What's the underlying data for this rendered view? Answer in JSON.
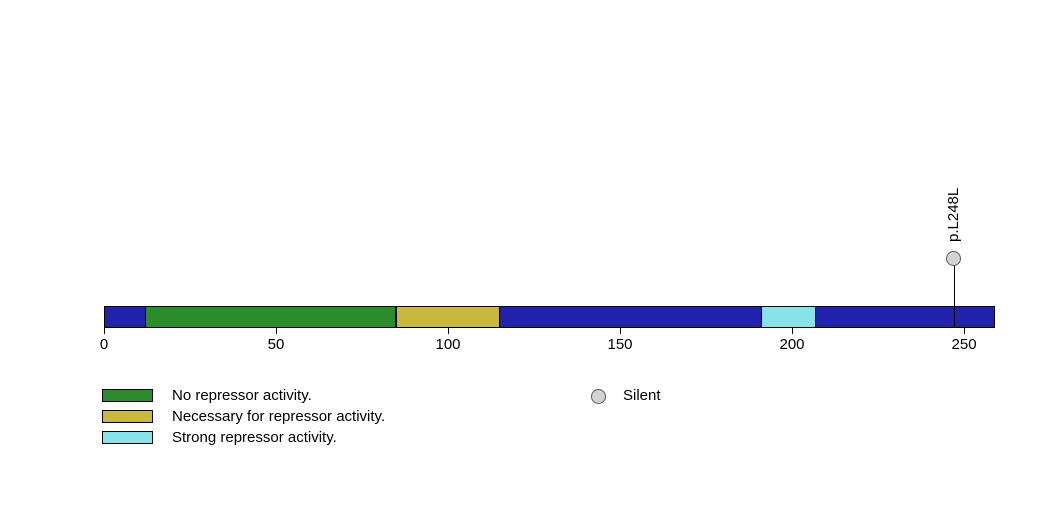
{
  "chart_data": {
    "type": "lollipop",
    "description": "Protein domain lollipop plot with one silent mutation",
    "axis": {
      "min": 0,
      "max": 259,
      "ticks": [
        0,
        50,
        100,
        150,
        200,
        250
      ],
      "grid": false
    },
    "backbone": {
      "start": 0,
      "end": 259,
      "color": "#2222AC"
    },
    "domains": [
      {
        "label": "No repressor activity.",
        "start": 12,
        "end": 85,
        "color": "#2B8C2B"
      },
      {
        "label": "Necessary for repressor activity.",
        "start": 85,
        "end": 115,
        "color": "#C8B83E"
      },
      {
        "label": "Strong repressor activity.",
        "start": 191,
        "end": 207,
        "color": "#87E3EA"
      }
    ],
    "mutations": [
      {
        "label": "p.L248L",
        "position": 247,
        "category": "Silent",
        "fill": "#D3D3D3",
        "stroke": "#5a5a5a"
      }
    ],
    "legend_markers": [
      {
        "label": "Silent",
        "fill": "#D3D3D3",
        "stroke": "#5a5a5a"
      }
    ]
  }
}
